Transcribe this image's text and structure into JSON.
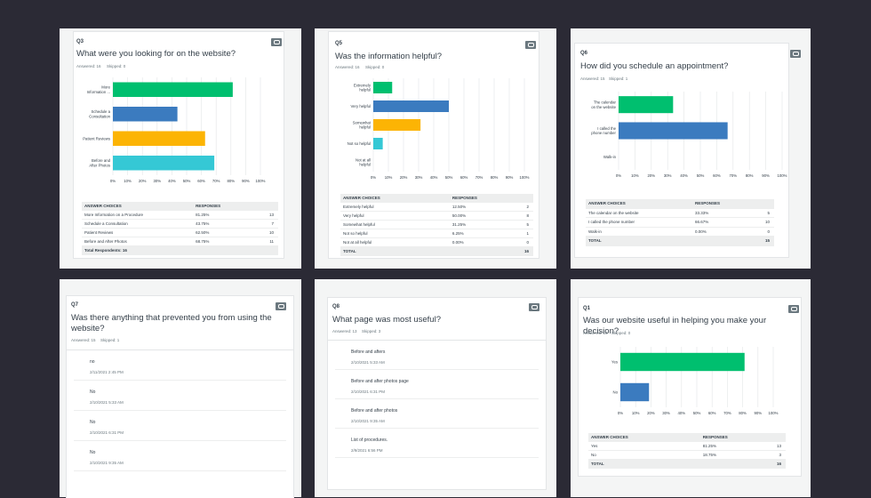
{
  "colors": {
    "green": "#00bf6f",
    "blue": "#3b7bbf",
    "yellow": "#fcb404",
    "teal": "#35c8d5",
    "grid": "#e3e5e7",
    "icon": "#6b787f"
  },
  "q3": {
    "num": "Q3",
    "title": "What were you looking for on the website?",
    "answered": "Answered: 16",
    "skipped": "Skipped: 0",
    "chart_data": {
      "type": "bar",
      "orientation": "horizontal",
      "categories": [
        [
          "More",
          "Information ..."
        ],
        [
          "Schedule a",
          "Consultation"
        ],
        [
          "Patient Reviews"
        ],
        [
          "Before and",
          "After Photos"
        ]
      ],
      "values": [
        81.25,
        43.75,
        62.5,
        68.75
      ],
      "colors": [
        "#00bf6f",
        "#3b7bbf",
        "#fcb404",
        "#35c8d5"
      ],
      "xticks": [
        "0%",
        "10%",
        "20%",
        "30%",
        "40%",
        "50%",
        "60%",
        "70%",
        "80%",
        "90%",
        "100%"
      ],
      "xlim": [
        0,
        100
      ]
    },
    "table": {
      "h1": "ANSWER CHOICES",
      "h2": "RESPONSES",
      "rows": [
        [
          "More Information on a Procedure",
          "81.25%",
          "13"
        ],
        [
          "Schedule a Consultation",
          "43.75%",
          "7"
        ],
        [
          "Patient Reviews",
          "62.50%",
          "10"
        ],
        [
          "Before and After Photos",
          "68.75%",
          "11"
        ]
      ],
      "footer": "Total Respondents: 16"
    }
  },
  "q5": {
    "num": "Q5",
    "title": "Was the information helpful?",
    "answered": "Answered: 16",
    "skipped": "Skipped: 0",
    "chart_data": {
      "type": "bar",
      "orientation": "horizontal",
      "categories": [
        [
          "Extremely",
          "helpful"
        ],
        [
          "Very helpful"
        ],
        [
          "Somewhat",
          "helpful"
        ],
        [
          "Not so helpful"
        ],
        [
          "Not at all",
          "helpful"
        ]
      ],
      "values": [
        12.5,
        50,
        31.25,
        6.25,
        0
      ],
      "colors": [
        "#00bf6f",
        "#3b7bbf",
        "#fcb404",
        "#35c8d5",
        "#35c8d5"
      ],
      "xticks": [
        "0%",
        "10%",
        "20%",
        "30%",
        "40%",
        "50%",
        "60%",
        "70%",
        "80%",
        "90%",
        "100%"
      ],
      "xlim": [
        0,
        100
      ]
    },
    "table": {
      "h1": "ANSWER CHOICES",
      "h2": "RESPONSES",
      "rows": [
        [
          "Extremely helpful",
          "12.50%",
          "2"
        ],
        [
          "Very helpful",
          "50.00%",
          "8"
        ],
        [
          "Somewhat helpful",
          "31.25%",
          "5"
        ],
        [
          "Not so helpful",
          "6.25%",
          "1"
        ],
        [
          "Not at all helpful",
          "0.00%",
          "0"
        ]
      ],
      "footer": "TOTAL",
      "footer_count": "16"
    }
  },
  "q6": {
    "num": "Q6",
    "title": "How did you schedule an appointment?",
    "answered": "Answered: 15",
    "skipped": "Skipped: 1",
    "chart_data": {
      "type": "bar",
      "orientation": "horizontal",
      "categories": [
        [
          "The calendar",
          "on the website"
        ],
        [
          "I called the",
          "phone number"
        ],
        [
          "Walk-in"
        ]
      ],
      "values": [
        33.33,
        66.67,
        0
      ],
      "colors": [
        "#00bf6f",
        "#3b7bbf",
        "#fcb404"
      ],
      "xticks": [
        "0%",
        "10%",
        "20%",
        "30%",
        "40%",
        "50%",
        "60%",
        "70%",
        "80%",
        "90%",
        "100%"
      ],
      "xlim": [
        0,
        100
      ]
    },
    "table": {
      "h1": "ANSWER CHOICES",
      "h2": "RESPONSES",
      "rows": [
        [
          "The calendar on the website",
          "33.33%",
          "5"
        ],
        [
          "I called the phone number",
          "66.67%",
          "10"
        ],
        [
          "Walk-in",
          "0.00%",
          "0"
        ]
      ],
      "footer": "TOTAL",
      "footer_count": "15"
    }
  },
  "q7": {
    "num": "Q7",
    "title_line1": "Was there anything that prevented you from using the",
    "title_line2": "website?",
    "answered": "Answered: 15",
    "skipped": "Skipped: 1",
    "responses": [
      [
        "no",
        "2/11/2021 2:45 PM"
      ],
      [
        "No",
        "2/10/2021 5:33 AM"
      ],
      [
        "No",
        "2/10/2021 6:31 PM"
      ],
      [
        "No",
        "2/10/2021 9:35 AM"
      ]
    ]
  },
  "q8": {
    "num": "Q8",
    "title": "What page was most useful?",
    "answered": "Answered: 13",
    "skipped": "Skipped: 3",
    "responses": [
      [
        "Before and afters",
        "2/10/2021 5:33 AM"
      ],
      [
        "Before and after photos page",
        "2/10/2021 6:31 PM"
      ],
      [
        "Before and after photos",
        "2/10/2021 9:35 AM"
      ],
      [
        "List of procedures.",
        "2/9/2021 6:56 PM"
      ]
    ]
  },
  "q1": {
    "num": "Q1",
    "title": "Was our website useful in helping you make your decision?",
    "answered": "Answered: 16",
    "skipped": "Skipped: 0",
    "chart_data": {
      "type": "bar",
      "orientation": "horizontal",
      "categories": [
        [
          "Yes"
        ],
        [
          "No"
        ]
      ],
      "values": [
        81.25,
        18.75
      ],
      "colors": [
        "#00bf6f",
        "#3b7bbf"
      ],
      "xticks": [
        "0%",
        "10%",
        "20%",
        "30%",
        "40%",
        "50%",
        "60%",
        "70%",
        "80%",
        "90%",
        "100%"
      ],
      "xlim": [
        0,
        100
      ]
    },
    "table": {
      "h1": "ANSWER CHOICES",
      "h2": "RESPONSES",
      "rows": [
        [
          "Yes",
          "81.25%",
          "13"
        ],
        [
          "No",
          "18.75%",
          "3"
        ]
      ],
      "footer": "TOTAL",
      "footer_count": "16"
    }
  }
}
